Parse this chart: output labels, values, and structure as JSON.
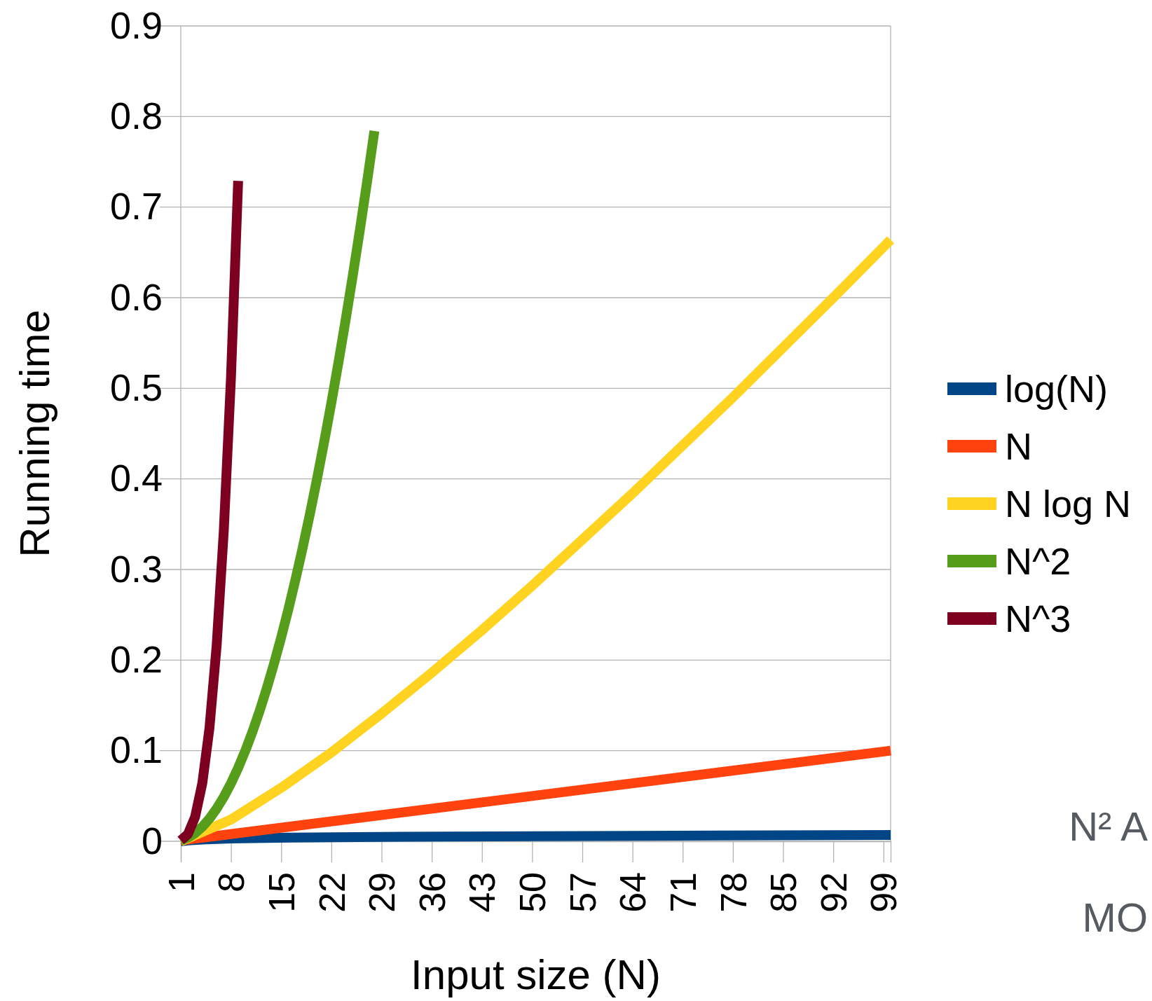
{
  "chart_data": {
    "type": "line",
    "xlabel": "Input size (N)",
    "ylabel": "Running time",
    "xlim": [
      1,
      100
    ],
    "ylim": [
      0,
      0.9
    ],
    "yticks": [
      0,
      0.1,
      0.2,
      0.3,
      0.4,
      0.5,
      0.6,
      0.7,
      0.8,
      0.9
    ],
    "xticks": [
      1,
      8,
      15,
      22,
      29,
      36,
      43,
      50,
      57,
      64,
      71,
      78,
      85,
      92,
      99
    ],
    "grid": "y",
    "legend": "right",
    "marker": "none",
    "line_style": "solid",
    "series": [
      {
        "name": "log(N)",
        "color": "#004586",
        "x": [
          1,
          2,
          4,
          8,
          16,
          32,
          64,
          100
        ],
        "values": [
          0,
          0.001,
          0.002,
          0.003,
          0.004,
          0.005,
          0.006,
          0.007
        ]
      },
      {
        "name": "N",
        "color": "#ff420e",
        "x": [
          1,
          50,
          100
        ],
        "values": [
          0.001,
          0.05,
          0.1
        ]
      },
      {
        "name": "N log N",
        "color": "#ffd320",
        "x": [
          1,
          8,
          15,
          22,
          29,
          36,
          43,
          50,
          57,
          64,
          71,
          78,
          85,
          92,
          99,
          100
        ],
        "values": [
          0,
          0.024,
          0.059,
          0.098,
          0.141,
          0.186,
          0.233,
          0.282,
          0.333,
          0.384,
          0.437,
          0.49,
          0.545,
          0.6,
          0.656,
          0.664
        ]
      },
      {
        "name": "N^2",
        "color": "#579d1c",
        "x": [
          1,
          2,
          3,
          4,
          5,
          6,
          7,
          8,
          9,
          10,
          11,
          12,
          13,
          14,
          15,
          16,
          17,
          18,
          19,
          20,
          21,
          22,
          23,
          24,
          25,
          26,
          27,
          28
        ],
        "values": [
          0.001,
          0.004,
          0.009,
          0.016,
          0.025,
          0.036,
          0.049,
          0.064,
          0.081,
          0.1,
          0.121,
          0.144,
          0.169,
          0.196,
          0.225,
          0.256,
          0.289,
          0.324,
          0.361,
          0.4,
          0.441,
          0.484,
          0.529,
          0.576,
          0.625,
          0.676,
          0.729,
          0.784
        ]
      },
      {
        "name": "N^3",
        "color": "#7e0021",
        "x": [
          1,
          2,
          3,
          4,
          5,
          6,
          7,
          8,
          9
        ],
        "values": [
          0.001,
          0.008,
          0.027,
          0.064,
          0.125,
          0.216,
          0.343,
          0.512,
          0.729
        ]
      }
    ],
    "annotations": [
      "N² A",
      "MO"
    ]
  }
}
